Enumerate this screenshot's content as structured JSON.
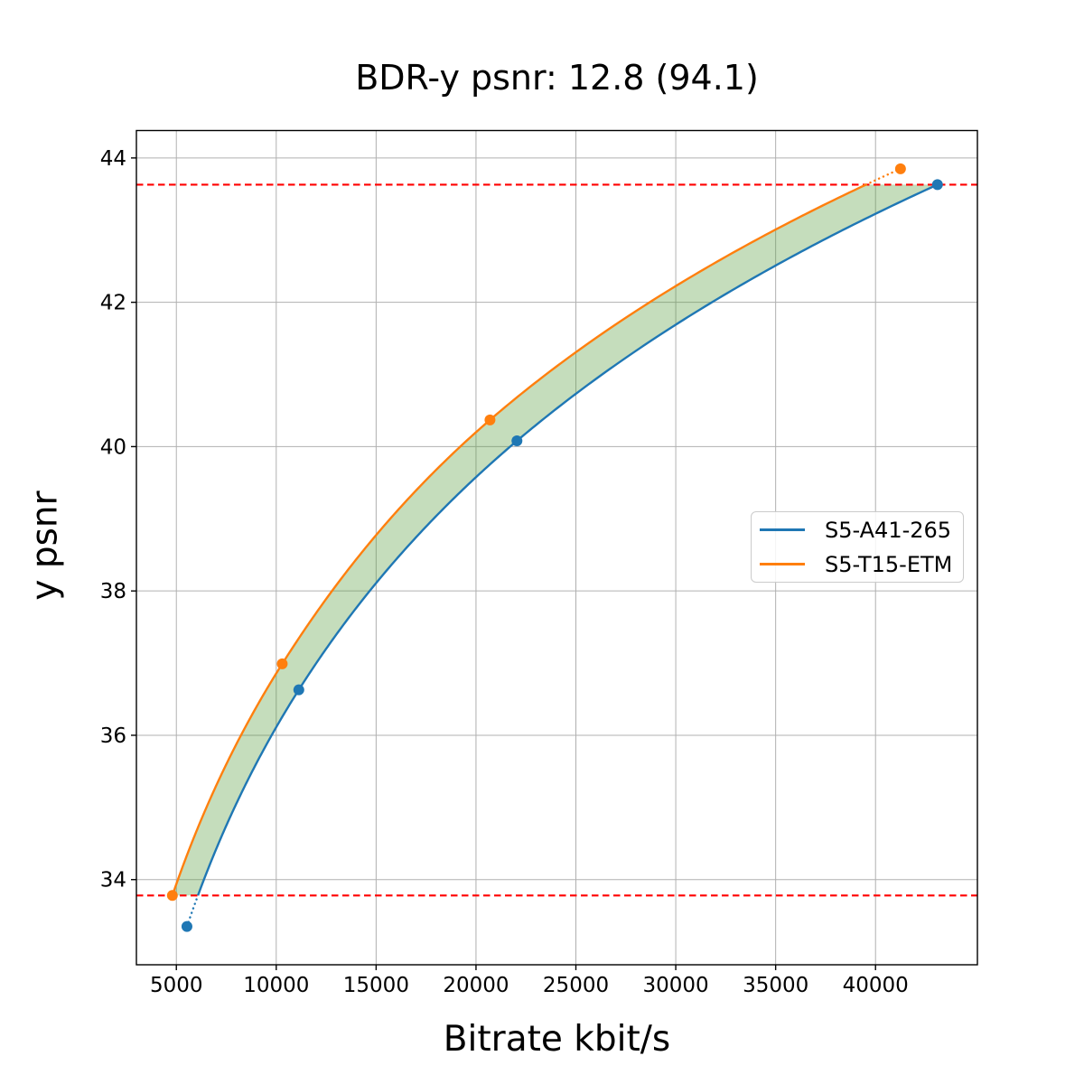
{
  "figure": {
    "background": "#ffffff"
  },
  "chart_data": {
    "type": "line",
    "title": "BDR-y psnr: 12.8 (94.1)",
    "xlabel": "Bitrate kbit/s",
    "ylabel": "y psnr",
    "xlim": [
      3000,
      45100
    ],
    "ylim": [
      32.82,
      44.38
    ],
    "xticks": [
      5000,
      10000,
      15000,
      20000,
      25000,
      30000,
      35000,
      40000
    ],
    "yticks": [
      34,
      36,
      38,
      40,
      42,
      44
    ],
    "grid": true,
    "grid_color": "#b0b0b0",
    "axes_color": "#000000",
    "legend_position": "center right",
    "series": [
      {
        "name": "S5-A41-265",
        "color": "#1f77b4",
        "marker": "circle",
        "points": [
          [
            5530,
            33.35
          ],
          [
            11130,
            36.63
          ],
          [
            22050,
            40.08
          ],
          [
            43100,
            43.63
          ]
        ]
      },
      {
        "name": "S5-T15-ETM",
        "color": "#ff7f0e",
        "marker": "circle",
        "points": [
          [
            4800,
            33.78
          ],
          [
            10300,
            36.99
          ],
          [
            20700,
            40.37
          ],
          [
            41250,
            43.85
          ]
        ]
      }
    ],
    "hlines": [
      {
        "y": 43.63,
        "color": "#ff0000",
        "style": "dashed"
      },
      {
        "y": 33.78,
        "color": "#ff0000",
        "style": "dashed"
      }
    ],
    "shaded_region": {
      "upper_series": "S5-T15-ETM",
      "lower_series": "S5-A41-265",
      "clip_y": [
        33.78,
        43.63
      ],
      "color": "#5a9e3f",
      "opacity": 0.35
    }
  }
}
